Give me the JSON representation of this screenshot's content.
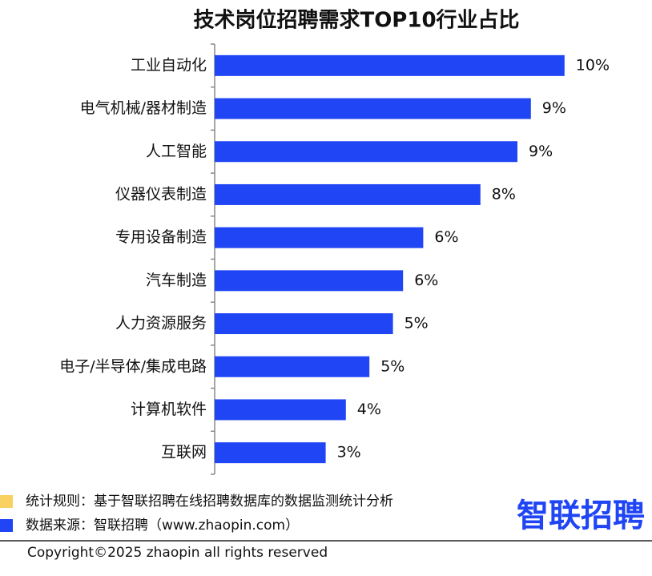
{
  "chart_data": {
    "type": "bar",
    "orientation": "horizontal",
    "title": "技术岗位招聘需求TOP10行业占比",
    "categories": [
      "工业自动化",
      "电气机械/器材制造",
      "人工智能",
      "仪器仪表制造",
      "专用设备制造",
      "汽车制造",
      "人力资源服务",
      "电子/半导体/集成电路",
      "计算机软件",
      "互联网"
    ],
    "values": [
      10.4,
      9.4,
      9.0,
      7.9,
      6.2,
      5.6,
      5.3,
      4.6,
      3.9,
      3.3
    ],
    "value_labels": [
      "10%",
      "9%",
      "9%",
      "8%",
      "6%",
      "6%",
      "5%",
      "5%",
      "4%",
      "3%"
    ],
    "color": "#1f45f5",
    "xlim": [
      0,
      12
    ]
  },
  "footer": {
    "notes": [
      {
        "text": "统计规则：基于智联招聘在线招聘数据库的数据监测统计分析",
        "color": "#f9d160"
      },
      {
        "text": "数据来源：智联招聘（www.zhaopin.com）",
        "color": "#1f45f5"
      }
    ],
    "logo": "智联招聘",
    "copyright": "Copyright©2025 zhaopin all rights reserved"
  }
}
